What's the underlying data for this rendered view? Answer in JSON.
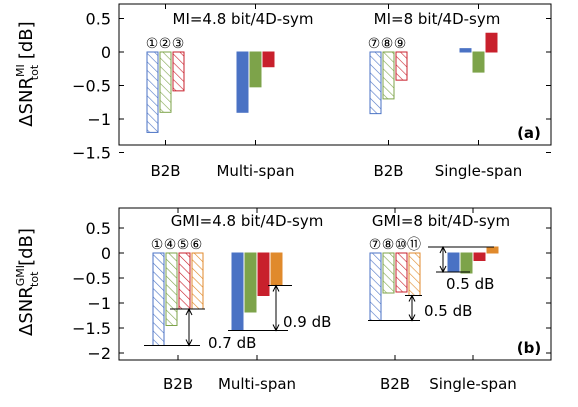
{
  "colors": {
    "blue": "#4a72c4",
    "green": "#7da34a",
    "red": "#c8202c",
    "orange": "#e08a2c",
    "frame": "#000000"
  },
  "chart_data": [
    {
      "type": "bar",
      "panel_label": "(a)",
      "ylabel": {
        "main": "ΔSNR",
        "sub": "tot",
        "sup": "MI",
        "unit": "[dB]"
      },
      "ylim": [
        -1.5,
        0.75
      ],
      "yticks": [
        0.5,
        0,
        -0.5,
        -1,
        -1.5
      ],
      "ytick_labels": [
        "0.5",
        "0",
        "−0.5",
        "−1",
        "−1.5"
      ],
      "categories": [
        "B2B",
        "Multi-span",
        "B2B",
        "Single-span"
      ],
      "group_titles": [
        "MI=4.8 bit/4D-sym",
        "MI=8 bit/4D-sym"
      ],
      "circle_labels": [
        [
          "①",
          "②",
          "③"
        ],
        [
          "⑦",
          "⑧",
          "⑨"
        ]
      ],
      "groups": [
        {
          "category": "B2B",
          "bars": [
            {
              "color": "blue",
              "hatched": true,
              "value": -1.2
            },
            {
              "color": "green",
              "hatched": true,
              "value": -0.9
            },
            {
              "color": "red",
              "hatched": true,
              "value": -0.58
            }
          ]
        },
        {
          "category": "Multi-span",
          "bars": [
            {
              "color": "blue",
              "hatched": false,
              "value": -0.9
            },
            {
              "color": "green",
              "hatched": false,
              "value": -0.52
            },
            {
              "color": "red",
              "hatched": false,
              "value": -0.22
            }
          ]
        },
        {
          "category": "B2B",
          "bars": [
            {
              "color": "blue",
              "hatched": true,
              "value": -0.92
            },
            {
              "color": "green",
              "hatched": true,
              "value": -0.7
            },
            {
              "color": "red",
              "hatched": true,
              "value": -0.42
            }
          ]
        },
        {
          "category": "Single-span",
          "bars": [
            {
              "color": "blue",
              "hatched": false,
              "value": 0.05
            },
            {
              "color": "green",
              "hatched": false,
              "value": -0.3
            },
            {
              "color": "red",
              "hatched": false,
              "value": 0.28
            }
          ]
        }
      ],
      "annotations": []
    },
    {
      "type": "bar",
      "panel_label": "(b)",
      "ylabel": {
        "main": "ΔSNR",
        "sub": "tot",
        "sup": "GMI",
        "unit": "[dB]"
      },
      "ylim": [
        -2,
        0.75
      ],
      "yticks": [
        0.5,
        0,
        -0.5,
        -1,
        -1.5,
        -2
      ],
      "ytick_labels": [
        "0.5",
        "0",
        "−0.5",
        "−1",
        "−1.5",
        "−2"
      ],
      "categories": [
        "B2B",
        "Multi-span",
        "B2B",
        "Single-span"
      ],
      "group_titles": [
        "GMI=4.8 bit/4D-sym",
        "GMI=8 bit/4D-sym"
      ],
      "circle_labels": [
        [
          "①",
          "④",
          "⑤",
          "⑥"
        ],
        [
          "⑦",
          "⑧",
          "⑩",
          "⑪"
        ]
      ],
      "groups": [
        {
          "category": "B2B",
          "bars": [
            {
              "color": "blue",
              "hatched": true,
              "value": -1.85
            },
            {
              "color": "green",
              "hatched": true,
              "value": -1.45
            },
            {
              "color": "red",
              "hatched": true,
              "value": -1.12
            },
            {
              "color": "orange",
              "hatched": true,
              "value": -1.12
            }
          ]
        },
        {
          "category": "Multi-span",
          "bars": [
            {
              "color": "blue",
              "hatched": false,
              "value": -1.55
            },
            {
              "color": "green",
              "hatched": false,
              "value": -1.18
            },
            {
              "color": "red",
              "hatched": false,
              "value": -0.85
            },
            {
              "color": "orange",
              "hatched": false,
              "value": -0.65
            }
          ]
        },
        {
          "category": "B2B",
          "bars": [
            {
              "color": "blue",
              "hatched": true,
              "value": -1.35
            },
            {
              "color": "green",
              "hatched": true,
              "value": -0.8
            },
            {
              "color": "red",
              "hatched": true,
              "value": -0.78
            },
            {
              "color": "orange",
              "hatched": true,
              "value": -0.85
            }
          ]
        },
        {
          "category": "Single-span",
          "bars": [
            {
              "color": "blue",
              "hatched": false,
              "value": -0.38
            },
            {
              "color": "green",
              "hatched": false,
              "value": -0.4
            },
            {
              "color": "red",
              "hatched": false,
              "value": -0.15
            },
            {
              "color": "orange",
              "hatched": false,
              "value": 0.12
            }
          ]
        }
      ],
      "annotations": [
        "0.7 dB",
        "0.9 dB",
        "0.5 dB",
        "0.5 dB"
      ]
    }
  ]
}
